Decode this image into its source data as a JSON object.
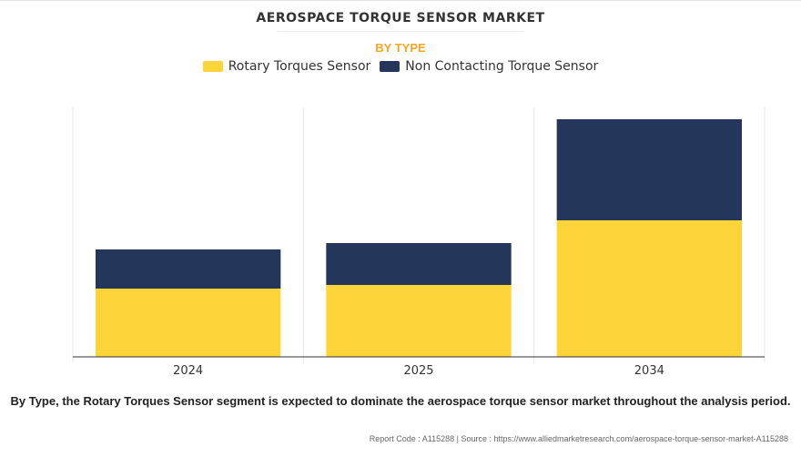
{
  "chart_data": {
    "type": "bar",
    "stacked": true,
    "title": "AEROSPACE TORQUE SENSOR MARKET",
    "subtitle": "BY TYPE",
    "categories": [
      "2024",
      "2025",
      "2034"
    ],
    "series": [
      {
        "name": "Rotary Torques Sensor",
        "color": "#fed43b",
        "values": [
          75,
          79,
          150
        ]
      },
      {
        "name": "Non Contacting Torque Sensor",
        "color": "#243659",
        "values": [
          43,
          46,
          111
        ]
      }
    ],
    "ylim": [
      0,
      274
    ],
    "y_axis_visible": false,
    "grid": "vertical",
    "legend": "top-center"
  },
  "caption": "By Type, the Rotary Torques Sensor segment is expected to dominate the aerospace torque sensor market throughout the analysis period.",
  "footer": "Report Code : A115288  |  Source : https://www.alliedmarketresearch.com/aerospace-torque-sensor-market-A115288"
}
